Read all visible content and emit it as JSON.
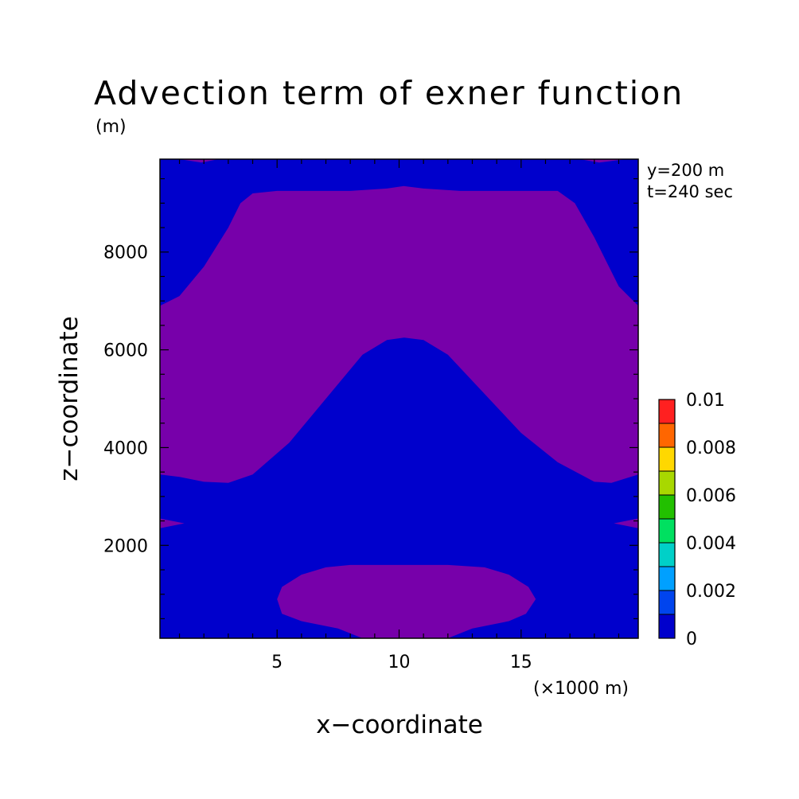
{
  "chart_data": {
    "type": "heatmap",
    "title": "Advection term of exner function",
    "xlabel": "x−coordinate",
    "ylabel": "z−coordinate",
    "x_unit": "(×1000 m)",
    "y_unit": "(m)",
    "annotations": [
      "y=200 m",
      "t=240 sec"
    ],
    "xlim": [
      0.2,
      19.8
    ],
    "ylim": [
      100,
      9900
    ],
    "x_ticks": [
      5,
      10,
      15
    ],
    "x_tick_labels": [
      "5",
      "10",
      "15"
    ],
    "y_ticks": [
      2000,
      4000,
      6000,
      8000
    ],
    "y_tick_labels": [
      "2000",
      "4000",
      "6000",
      "8000"
    ],
    "colorbar": {
      "levels": [
        0,
        0.001,
        0.002,
        0.003,
        0.004,
        0.005,
        0.006,
        0.007,
        0.008,
        0.009,
        0.01
      ],
      "labels": [
        "0",
        "0.002",
        "0.004",
        "0.006",
        "0.008",
        "0.01"
      ],
      "label_values": [
        0,
        0.002,
        0.004,
        0.006,
        0.008,
        0.01
      ],
      "colors": [
        "#0000cc",
        "#0044ee",
        "#00a0ff",
        "#00d0c8",
        "#00e060",
        "#22c000",
        "#a8d800",
        "#ffd800",
        "#ff6600",
        "#ff2020"
      ]
    },
    "background_color": "#0000cc",
    "regions": [
      {
        "name": "upper-purple",
        "color": "#7700aa",
        "outline": [
          [
            0.2,
            6.9
          ],
          [
            1,
            7.1
          ],
          [
            2,
            7.7
          ],
          [
            3,
            8.5
          ],
          [
            3.5,
            9.0
          ],
          [
            4,
            9.2
          ],
          [
            5,
            9.25
          ],
          [
            8,
            9.25
          ],
          [
            9.5,
            9.3
          ],
          [
            10.2,
            9.35
          ],
          [
            11,
            9.3
          ],
          [
            12.5,
            9.25
          ],
          [
            15,
            9.25
          ],
          [
            16.5,
            9.25
          ],
          [
            17.2,
            9.0
          ],
          [
            18,
            8.3
          ],
          [
            19,
            7.3
          ],
          [
            19.8,
            6.9
          ],
          [
            19.8,
            3.45
          ],
          [
            18.7,
            3.28
          ],
          [
            18,
            3.3
          ],
          [
            16.5,
            3.7
          ],
          [
            15,
            4.3
          ],
          [
            13.5,
            5.1
          ],
          [
            12,
            5.9
          ],
          [
            11,
            6.2
          ],
          [
            10.2,
            6.25
          ],
          [
            9.5,
            6.2
          ],
          [
            8.5,
            5.9
          ],
          [
            7,
            5.0
          ],
          [
            5.5,
            4.1
          ],
          [
            4,
            3.45
          ],
          [
            3,
            3.28
          ],
          [
            2,
            3.3
          ],
          [
            1,
            3.4
          ],
          [
            0.2,
            3.45
          ]
        ]
      },
      {
        "name": "lower-ellipse",
        "color": "#7700aa",
        "outline": [
          [
            5,
            0.9
          ],
          [
            5.2,
            1.15
          ],
          [
            6,
            1.4
          ],
          [
            7,
            1.55
          ],
          [
            8,
            1.6
          ],
          [
            10.2,
            1.6
          ],
          [
            12,
            1.6
          ],
          [
            13.5,
            1.55
          ],
          [
            14.5,
            1.4
          ],
          [
            15.3,
            1.15
          ],
          [
            15.6,
            0.9
          ],
          [
            15.2,
            0.6
          ],
          [
            14.5,
            0.45
          ],
          [
            13,
            0.3
          ],
          [
            12,
            0.1
          ],
          [
            10.2,
            0.1
          ],
          [
            8.5,
            0.1
          ],
          [
            7.5,
            0.3
          ],
          [
            6,
            0.45
          ],
          [
            5.2,
            0.6
          ]
        ]
      },
      {
        "name": "left-sliver",
        "color": "#7700aa",
        "outline": [
          [
            0.2,
            2.35
          ],
          [
            1.2,
            2.45
          ],
          [
            0.2,
            2.55
          ]
        ]
      },
      {
        "name": "right-sliver",
        "color": "#7700aa",
        "outline": [
          [
            19.8,
            2.35
          ],
          [
            18.8,
            2.45
          ],
          [
            19.8,
            2.55
          ]
        ]
      },
      {
        "name": "top-left-sliver",
        "color": "#7700aa",
        "outline": [
          [
            1.0,
            9.9
          ],
          [
            1.9,
            9.83
          ],
          [
            2.6,
            9.9
          ]
        ]
      },
      {
        "name": "top-right-sliver",
        "color": "#7700aa",
        "outline": [
          [
            17.4,
            9.9
          ],
          [
            18.2,
            9.83
          ],
          [
            19.3,
            9.9
          ]
        ]
      }
    ]
  }
}
